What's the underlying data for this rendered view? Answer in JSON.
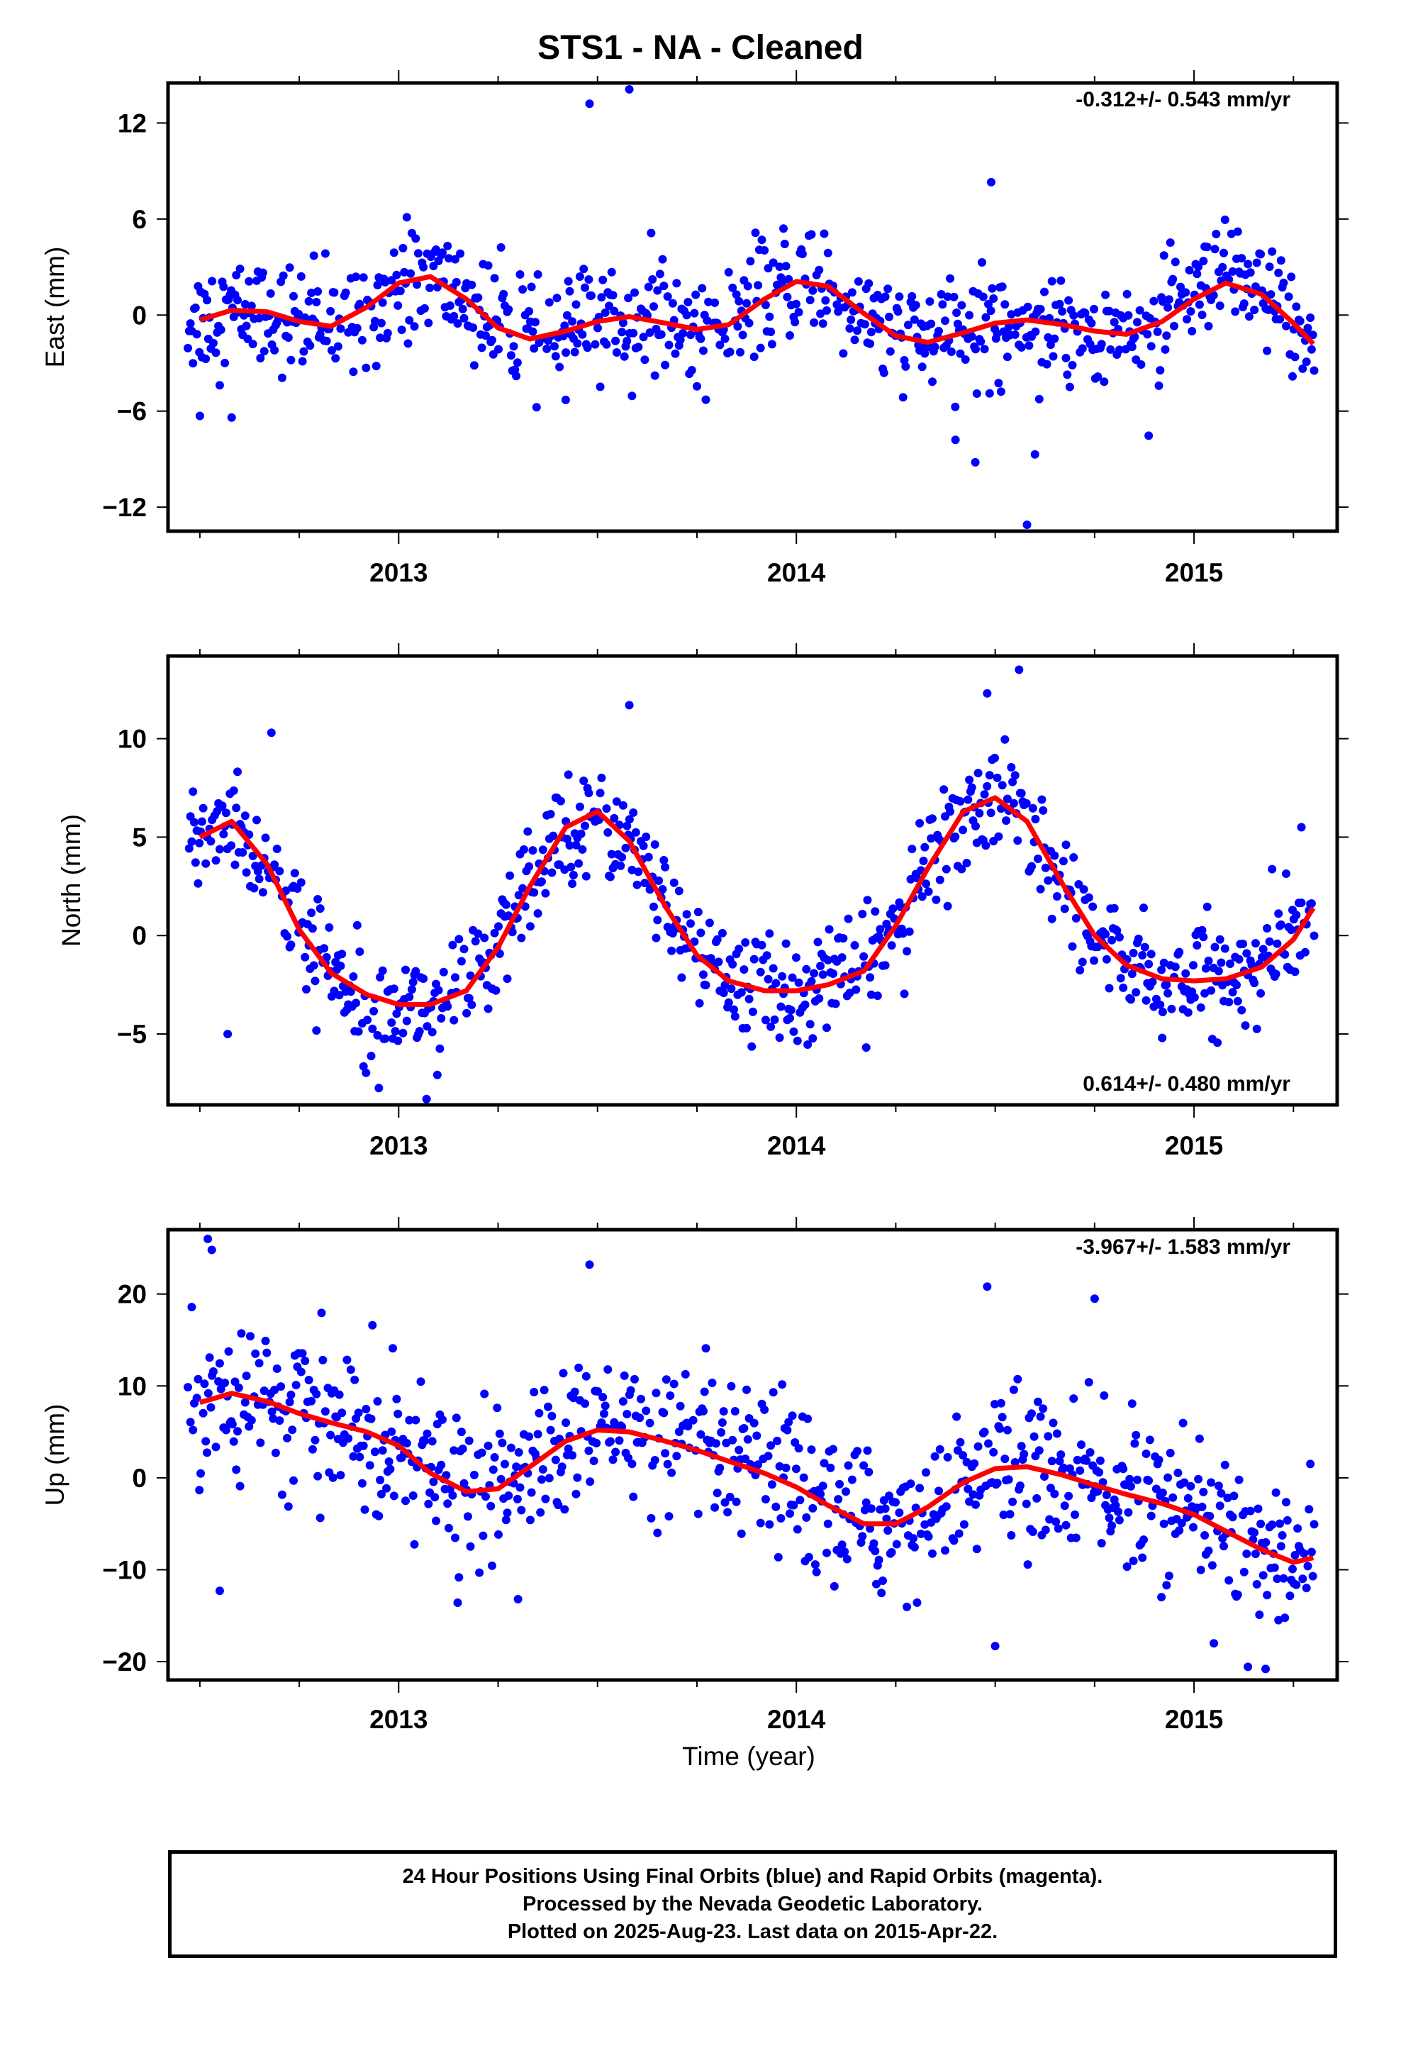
{
  "title": "STS1  - NA - Cleaned",
  "colors": {
    "points": "#0000ff",
    "model": "#ff0000",
    "frame": "#000000",
    "background": "#ffffff"
  },
  "xaxis": {
    "label": "Time (year)",
    "ticks": [
      "2013",
      "2014",
      "2015"
    ]
  },
  "footer": {
    "line1": "24 Hour Positions Using Final Orbits (blue) and Rapid Orbits (magenta).",
    "line2": "Processed by the Nevada Geodetic Laboratory.",
    "line3": "Plotted on 2025-Aug-23. Last data on 2015-Apr-22."
  },
  "chart_data": [
    {
      "type": "scatter",
      "ylabel": "East (mm)",
      "rate_label": "-0.312+/- 0.543 mm/yr",
      "xlim": [
        2012.42,
        2015.36
      ],
      "ylim": [
        -13.5,
        14.5
      ],
      "yticks": [
        -12,
        -6,
        0,
        6,
        12
      ],
      "ytick_labels": [
        "−12",
        "−6",
        "0",
        "6",
        "12"
      ],
      "xticks": [
        2013,
        2014,
        2015
      ],
      "xtick_labels": [
        "2013",
        "2014",
        "2015"
      ],
      "model": {
        "name": "model fit",
        "x": [
          2012.5,
          2012.58,
          2012.67,
          2012.75,
          2012.83,
          2012.92,
          2013.0,
          2013.08,
          2013.17,
          2013.25,
          2013.33,
          2013.42,
          2013.5,
          2013.58,
          2013.67,
          2013.75,
          2013.83,
          2013.92,
          2014.0,
          2014.08,
          2014.17,
          2014.25,
          2014.33,
          2014.42,
          2014.5,
          2014.58,
          2014.67,
          2014.75,
          2014.83,
          2014.92,
          2015.0,
          2015.08,
          2015.17,
          2015.25,
          2015.3
        ],
        "y": [
          -0.3,
          0.3,
          0.2,
          -0.4,
          -0.7,
          0.5,
          2.0,
          2.4,
          1.0,
          -0.8,
          -1.5,
          -1.0,
          -0.4,
          -0.1,
          -0.5,
          -0.9,
          -0.6,
          1.0,
          2.1,
          1.8,
          0.1,
          -1.3,
          -1.7,
          -1.1,
          -0.5,
          -0.3,
          -0.6,
          -1.0,
          -1.2,
          -0.4,
          1.0,
          2.0,
          1.3,
          -0.5,
          -1.8
        ]
      },
      "outliers": [
        {
          "x": 2013.48,
          "y": 13.2
        },
        {
          "x": 2013.58,
          "y": 14.1
        },
        {
          "x": 2014.49,
          "y": 8.3
        },
        {
          "x": 2014.58,
          "y": -13.1
        },
        {
          "x": 2014.45,
          "y": -9.2
        },
        {
          "x": 2014.4,
          "y": -7.8
        },
        {
          "x": 2014.6,
          "y": -8.7
        },
        {
          "x": 2012.58,
          "y": -6.4
        },
        {
          "x": 2012.5,
          "y": -6.3
        },
        {
          "x": 2013.42,
          "y": -5.3
        }
      ]
    },
    {
      "type": "scatter",
      "ylabel": "North (mm)",
      "rate_label": "0.614+/- 0.480 mm/yr",
      "xlim": [
        2012.42,
        2015.36
      ],
      "ylim": [
        -8.6,
        14.2
      ],
      "yticks": [
        -5,
        0,
        5,
        10
      ],
      "ytick_labels": [
        "−5",
        "0",
        "5",
        "10"
      ],
      "xticks": [
        2013,
        2014,
        2015
      ],
      "xtick_labels": [
        "2013",
        "2014",
        "2015"
      ],
      "model": {
        "name": "model fit",
        "x": [
          2012.5,
          2012.58,
          2012.67,
          2012.75,
          2012.83,
          2012.92,
          2013.0,
          2013.08,
          2013.17,
          2013.25,
          2013.33,
          2013.42,
          2013.5,
          2013.58,
          2013.67,
          2013.75,
          2013.83,
          2013.92,
          2014.0,
          2014.08,
          2014.17,
          2014.25,
          2014.33,
          2014.42,
          2014.5,
          2014.58,
          2014.67,
          2014.75,
          2014.83,
          2014.92,
          2015.0,
          2015.08,
          2015.17,
          2015.25,
          2015.3
        ],
        "y": [
          5.0,
          5.8,
          3.6,
          0.3,
          -1.9,
          -3.0,
          -3.5,
          -3.5,
          -2.8,
          -0.6,
          2.5,
          5.5,
          6.3,
          4.8,
          1.5,
          -1.0,
          -2.3,
          -2.8,
          -2.8,
          -2.5,
          -1.8,
          0.5,
          3.4,
          6.3,
          7.0,
          5.8,
          2.6,
          0.0,
          -1.5,
          -2.2,
          -2.3,
          -2.2,
          -1.6,
          -0.2,
          1.4
        ]
      },
      "outliers": [
        {
          "x": 2012.68,
          "y": 10.3
        },
        {
          "x": 2012.57,
          "y": -5.0
        },
        {
          "x": 2013.07,
          "y": -8.3
        },
        {
          "x": 2013.58,
          "y": 11.7
        },
        {
          "x": 2014.56,
          "y": 13.5
        },
        {
          "x": 2014.48,
          "y": 12.3
        },
        {
          "x": 2015.27,
          "y": 5.5
        },
        {
          "x": 2014.92,
          "y": -5.2
        }
      ]
    },
    {
      "type": "scatter",
      "ylabel": "Up (mm)",
      "rate_label": "-3.967+/- 1.583 mm/yr",
      "xlim": [
        2012.42,
        2015.36
      ],
      "ylim": [
        -22,
        27
      ],
      "yticks": [
        -20,
        -10,
        0,
        10,
        20
      ],
      "ytick_labels": [
        "−20",
        "−10",
        "0",
        "10",
        "20"
      ],
      "xticks": [
        2013,
        2014,
        2015
      ],
      "xtick_labels": [
        "2013",
        "2014",
        "2015"
      ],
      "model": {
        "name": "model fit",
        "x": [
          2012.5,
          2012.58,
          2012.67,
          2012.75,
          2012.83,
          2012.92,
          2013.0,
          2013.08,
          2013.17,
          2013.25,
          2013.33,
          2013.42,
          2013.5,
          2013.58,
          2013.67,
          2013.75,
          2013.83,
          2013.92,
          2014.0,
          2014.08,
          2014.17,
          2014.25,
          2014.33,
          2014.42,
          2014.5,
          2014.58,
          2014.67,
          2014.75,
          2014.83,
          2014.92,
          2015.0,
          2015.08,
          2015.17,
          2015.25,
          2015.3
        ],
        "y": [
          8.2,
          9.2,
          8.3,
          7.0,
          6.0,
          5.0,
          3.5,
          0.5,
          -1.5,
          -1.2,
          1.2,
          4.0,
          5.2,
          5.0,
          4.0,
          3.0,
          1.8,
          0.5,
          -1.0,
          -3.0,
          -5.0,
          -5.0,
          -3.2,
          -0.5,
          1.0,
          1.2,
          0.3,
          -0.8,
          -1.8,
          -2.8,
          -4.0,
          -5.8,
          -7.8,
          -9.2,
          -8.7
        ]
      },
      "outliers": [
        {
          "x": 2012.52,
          "y": 26.0
        },
        {
          "x": 2012.53,
          "y": 24.8
        },
        {
          "x": 2012.55,
          "y": -12.3
        },
        {
          "x": 2013.48,
          "y": 23.2
        },
        {
          "x": 2013.3,
          "y": -13.2
        },
        {
          "x": 2014.48,
          "y": 20.8
        },
        {
          "x": 2014.5,
          "y": -18.3
        },
        {
          "x": 2015.05,
          "y": -18.0
        },
        {
          "x": 2015.18,
          "y": -20.8
        },
        {
          "x": 2014.75,
          "y": 19.5
        }
      ]
    }
  ]
}
